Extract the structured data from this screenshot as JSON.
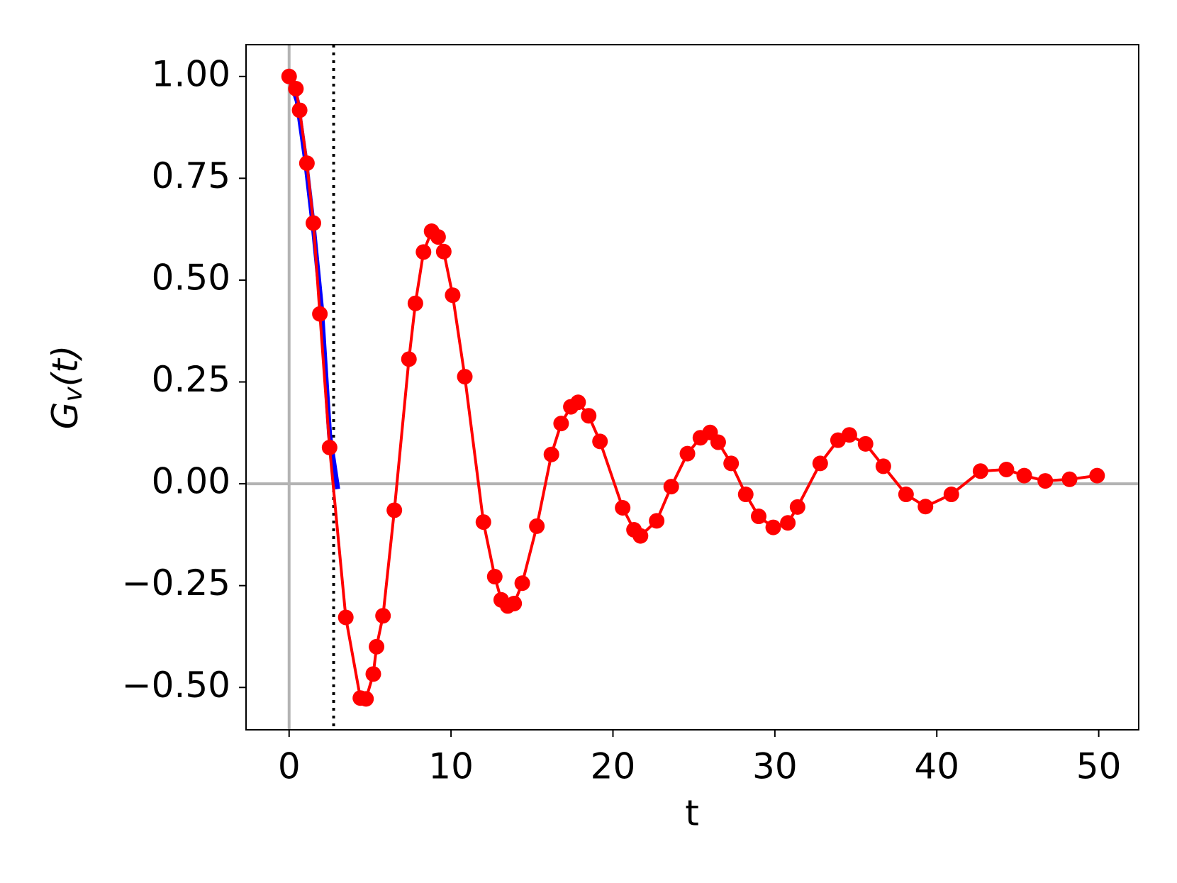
{
  "chart_data": {
    "type": "line",
    "xlabel": "t",
    "ylabel": {
      "base": "G",
      "sub": "v",
      "rest": "(t)"
    },
    "xlim": [
      -2.66,
      52.47
    ],
    "ylim": [
      -0.604,
      1.078
    ],
    "xticks": [
      0,
      10,
      20,
      30,
      40,
      50
    ],
    "yticks": [
      {
        "value": 1.0,
        "label": "1.00"
      },
      {
        "value": 0.75,
        "label": "0.75"
      },
      {
        "value": 0.5,
        "label": "0.50"
      },
      {
        "value": 0.25,
        "label": "0.25"
      },
      {
        "value": 0.0,
        "label": "0.00"
      },
      {
        "value": -0.25,
        "label": "−0.25"
      },
      {
        "value": -0.5,
        "label": "−0.50"
      }
    ],
    "hline": 0,
    "vline": 0,
    "dotted_vline": 2.75,
    "ref_color": "#b3b3b3",
    "series": [
      {
        "color": "#0000ff",
        "markers": false,
        "x": [
          0,
          0.5,
          1,
          1.5,
          2,
          2.5,
          3
        ],
        "values": [
          1.0,
          0.94,
          0.8,
          0.63,
          0.43,
          0.12,
          -0.013
        ]
      },
      {
        "color": "#ff0000",
        "markers": true,
        "x": [
          0,
          0.42,
          0.65,
          1.1,
          1.5,
          1.9,
          2.5,
          3.5,
          4.4,
          4.75,
          5.2,
          5.4,
          5.8,
          6.5,
          7.4,
          7.8,
          8.3,
          8.8,
          9.2,
          9.55,
          10.1,
          10.85,
          12.0,
          12.7,
          13.1,
          13.5,
          13.9,
          14.4,
          15.3,
          16.2,
          16.8,
          17.4,
          17.85,
          18.5,
          19.2,
          20.6,
          21.3,
          21.7,
          22.7,
          23.6,
          24.6,
          25.4,
          26.0,
          26.5,
          27.3,
          28.2,
          29.0,
          29.9,
          30.8,
          31.4,
          32.8,
          33.9,
          34.6,
          35.6,
          36.7,
          38.1,
          39.3,
          40.9,
          42.7,
          44.3,
          45.4,
          46.7,
          48.2,
          49.9
        ],
        "values": [
          1.0,
          0.97,
          0.917,
          0.787,
          0.64,
          0.417,
          0.089,
          -0.328,
          -0.526,
          -0.528,
          -0.467,
          -0.4,
          -0.324,
          -0.065,
          0.306,
          0.443,
          0.569,
          0.62,
          0.606,
          0.57,
          0.463,
          0.263,
          -0.094,
          -0.228,
          -0.285,
          -0.3,
          -0.294,
          -0.244,
          -0.104,
          0.072,
          0.148,
          0.189,
          0.2,
          0.167,
          0.104,
          -0.059,
          -0.113,
          -0.128,
          -0.091,
          -0.007,
          0.074,
          0.113,
          0.126,
          0.102,
          0.05,
          -0.026,
          -0.08,
          -0.107,
          -0.096,
          -0.057,
          0.05,
          0.107,
          0.12,
          0.098,
          0.043,
          -0.026,
          -0.056,
          -0.026,
          0.031,
          0.035,
          0.02,
          0.007,
          0.011,
          0.02
        ]
      }
    ]
  }
}
